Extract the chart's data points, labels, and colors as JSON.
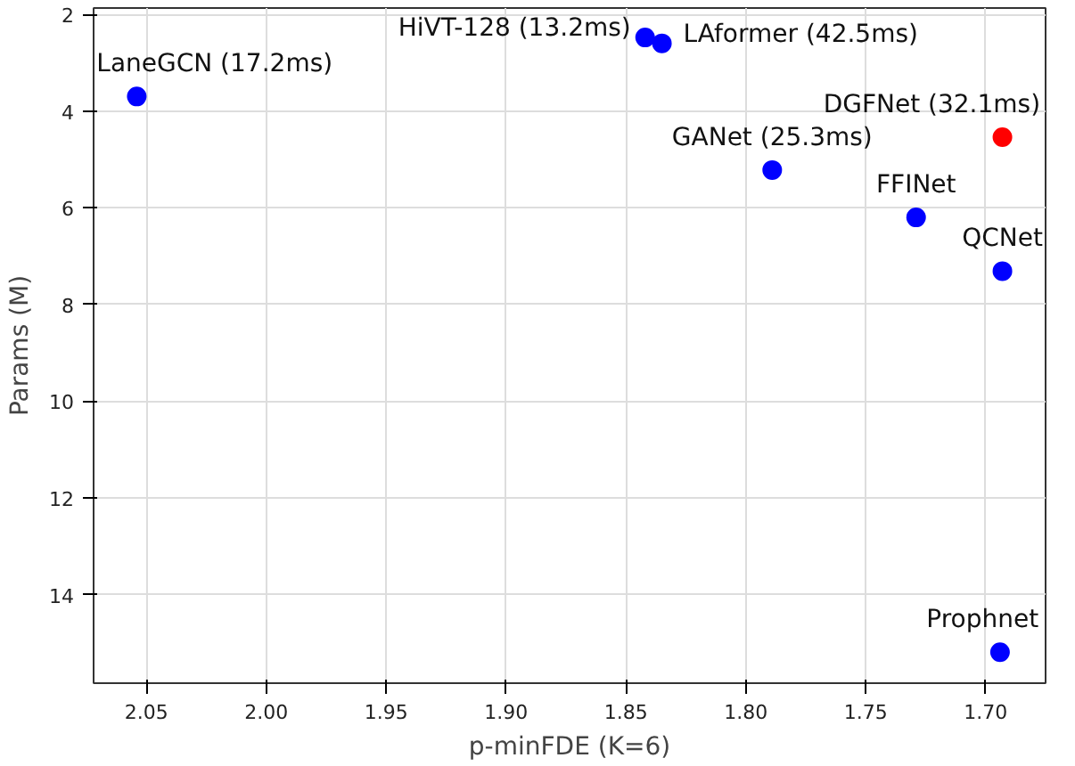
{
  "chart_data": {
    "type": "scatter",
    "xlabel": "p-minFDE (K=6)",
    "ylabel": "Params (M)",
    "series": [
      {
        "color": "#0000ff",
        "x": [
          2.054,
          1.842,
          1.835,
          1.789,
          1.729,
          1.693,
          1.694
        ],
        "values": [
          3.7,
          2.48,
          2.6,
          5.22,
          6.2,
          7.31,
          15.19
        ]
      },
      {
        "color": "#ff0000",
        "x": [
          1.693
        ],
        "values": [
          4.54
        ]
      }
    ],
    "annotations": [
      {
        "text": "LaneGCN (17.2ms)",
        "x": 2.054,
        "y": 3.7
      },
      {
        "text": "HiVT-128 (13.2ms)",
        "x": 1.842,
        "y": 2.48
      },
      {
        "text": "LAformer (42.5ms)",
        "x": 1.835,
        "y": 2.6
      },
      {
        "text": "GANet (25.3ms)",
        "x": 1.789,
        "y": 5.22
      },
      {
        "text": "FFINet",
        "x": 1.729,
        "y": 6.2
      },
      {
        "text": "QCNet",
        "x": 1.693,
        "y": 7.31
      },
      {
        "text": "DGFNet (32.1ms)",
        "x": 1.693,
        "y": 4.54
      },
      {
        "text": "Prophnet",
        "x": 1.694,
        "y": 15.19
      }
    ],
    "xlim": [
      2.072,
      1.675
    ],
    "ylim": [
      15.83,
      1.87
    ],
    "xticks": [
      {
        "value": 2.05,
        "label": "2.05"
      },
      {
        "value": 2.0,
        "label": "2.00"
      },
      {
        "value": 1.95,
        "label": "1.95"
      },
      {
        "value": 1.9,
        "label": "1.90"
      },
      {
        "value": 1.85,
        "label": "1.85"
      },
      {
        "value": 1.8,
        "label": "1.80"
      },
      {
        "value": 1.75,
        "label": "1.75"
      },
      {
        "value": 1.7,
        "label": "1.70"
      }
    ],
    "yticks": [
      2,
      4,
      6,
      8,
      10,
      12,
      14
    ],
    "grid": true,
    "marker": "circle"
  }
}
